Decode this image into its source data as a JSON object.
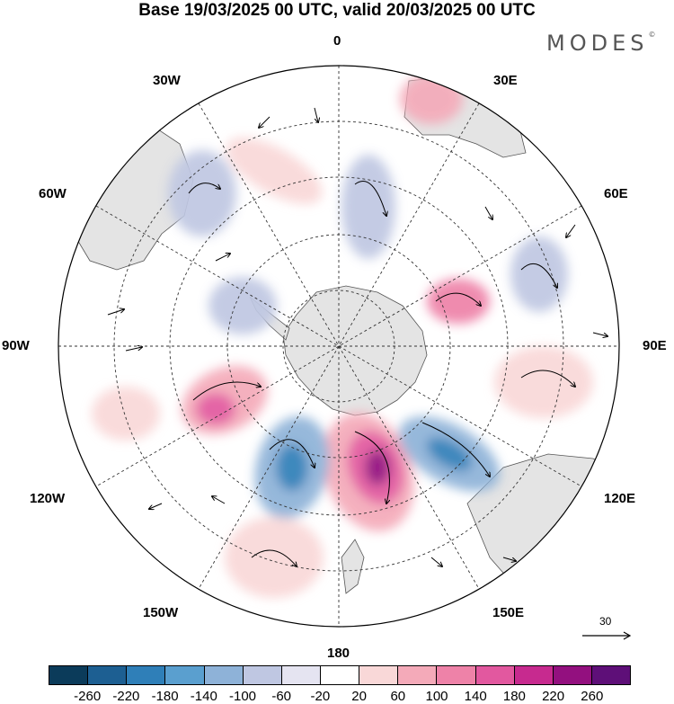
{
  "title": "Base 19/03/2025 00 UTC, valid 20/03/2025 00 UTC",
  "brand": "MODES",
  "brand_mark": "©",
  "longitude_labels": {
    "lon_0": "0",
    "lon_30e": "30E",
    "lon_60e": "60E",
    "lon_90e": "90E",
    "lon_120e": "120E",
    "lon_150e": "150E",
    "lon_180": "180",
    "lon_150w": "150W",
    "lon_120w": "120W",
    "lon_90w": "90W",
    "lon_60w": "60W",
    "lon_30w": "30W"
  },
  "reference_vector": {
    "label": "30"
  },
  "colorbar": {
    "colors": [
      "#0b3b5a",
      "#1d5f92",
      "#2f7fb8",
      "#5a9fcf",
      "#8eb2d8",
      "#bfc7e2",
      "#e5e4f1",
      "#ffffff",
      "#f9d8d8",
      "#f4aab9",
      "#ee82a8",
      "#e2589f",
      "#c72a8f",
      "#93107f",
      "#5e0f78"
    ],
    "tick_labels": [
      "-260",
      "-220",
      "-180",
      "-140",
      "-100",
      "-60",
      "-20",
      "20",
      "60",
      "100",
      "140",
      "180",
      "220",
      "260"
    ]
  }
}
